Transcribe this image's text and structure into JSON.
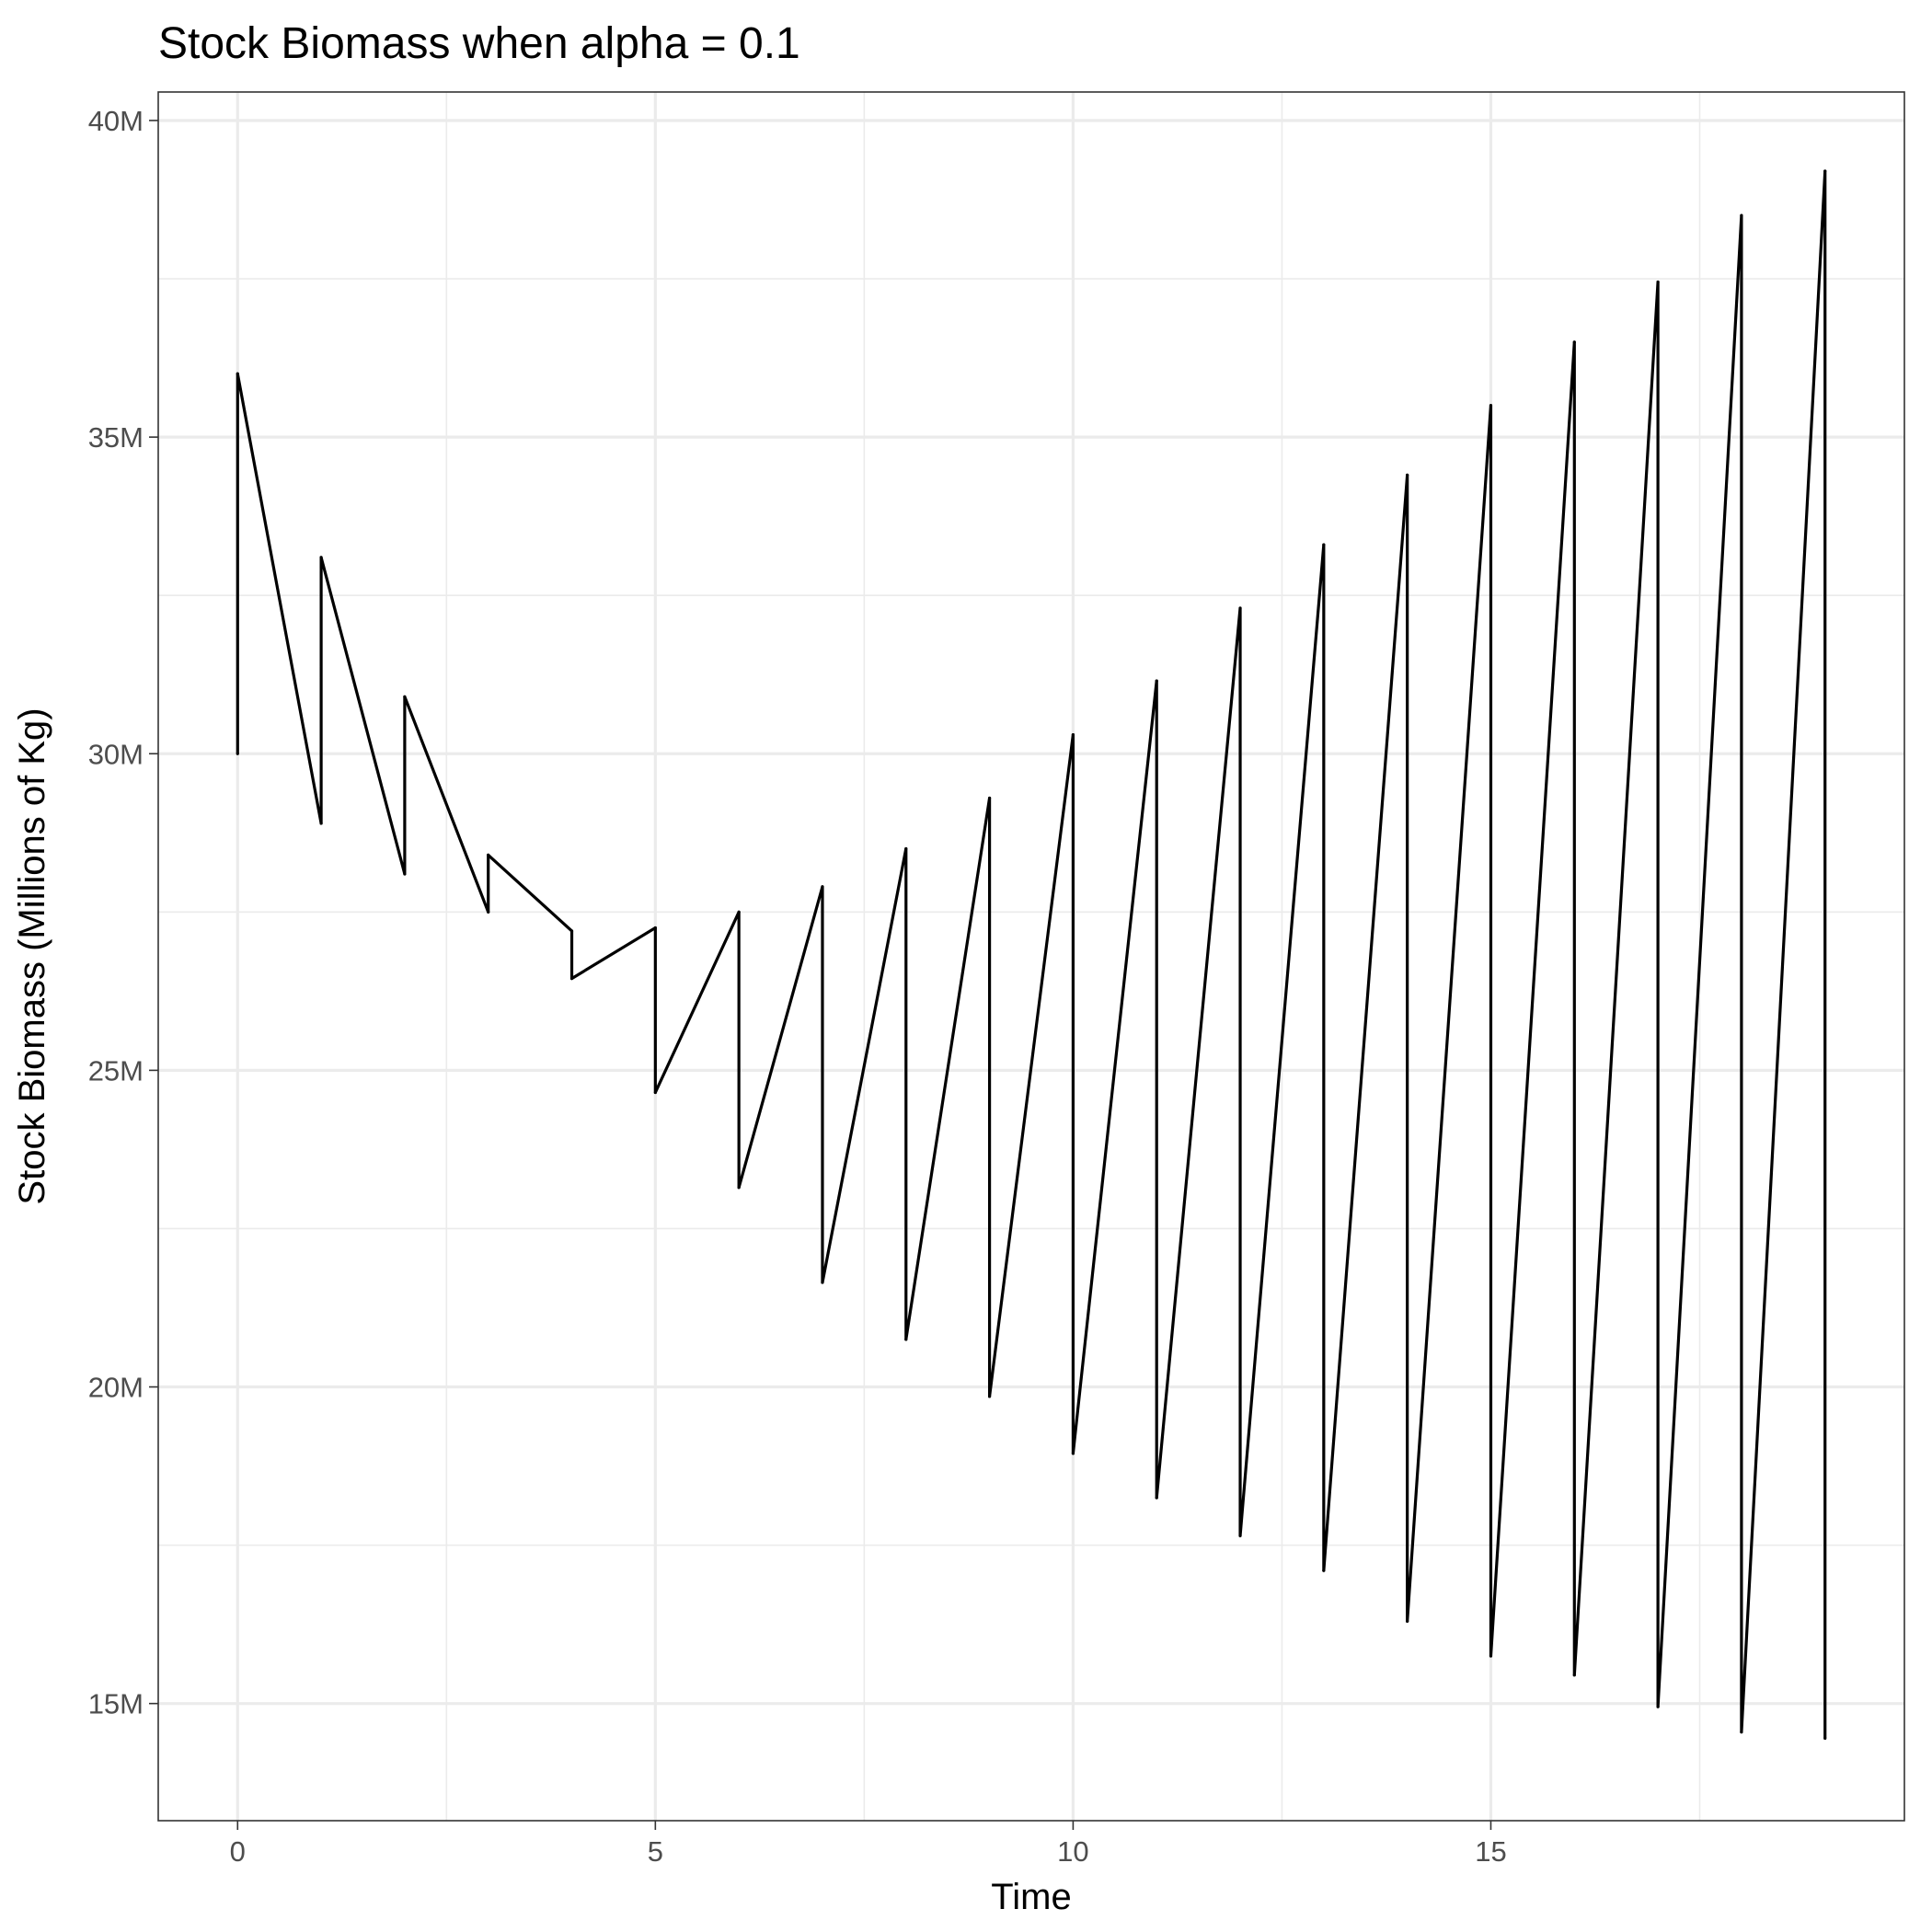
{
  "chart_data": {
    "type": "line",
    "title": "Stock Biomass when alpha = 0.1",
    "xlabel": "Time",
    "ylabel": "Stock Biomass (Millions of Kg)",
    "xlim": [
      -0.95,
      19.95
    ],
    "ylim": [
      13.15,
      40.45
    ],
    "x_ticks": [
      0,
      5,
      10,
      15
    ],
    "x_tick_labels": [
      "0",
      "5",
      "10",
      "15"
    ],
    "y_ticks": [
      15,
      20,
      25,
      30,
      35,
      40
    ],
    "y_tick_labels": [
      "15M",
      "20M",
      "25M",
      "30M",
      "35M",
      "40M"
    ],
    "x_minor_ticks": [
      2.5,
      7.5,
      12.5,
      17.5
    ],
    "y_minor_ticks": [
      17.5,
      22.5,
      27.5,
      32.5,
      37.5
    ],
    "grid": true,
    "y_units": "millions of kg",
    "series": [
      {
        "x": [
          0,
          0,
          1,
          1,
          2,
          2,
          3,
          3,
          4,
          4,
          5,
          5,
          6,
          6,
          7,
          7,
          8,
          8,
          9,
          9,
          10,
          10,
          11,
          11,
          12,
          12,
          13,
          13,
          14,
          14,
          15,
          15,
          16,
          16,
          17,
          17,
          18,
          18,
          19,
          19
        ],
        "y": [
          30.0,
          36.0,
          28.9,
          33.1,
          28.1,
          30.9,
          27.5,
          28.4,
          27.2,
          26.45,
          27.25,
          24.65,
          27.5,
          23.15,
          27.9,
          21.65,
          28.5,
          20.75,
          29.3,
          19.85,
          30.3,
          18.95,
          31.15,
          18.25,
          32.3,
          17.65,
          33.3,
          17.1,
          34.4,
          16.3,
          35.5,
          15.75,
          36.5,
          15.45,
          37.45,
          14.95,
          38.5,
          14.55,
          39.2,
          14.45
        ]
      }
    ]
  }
}
